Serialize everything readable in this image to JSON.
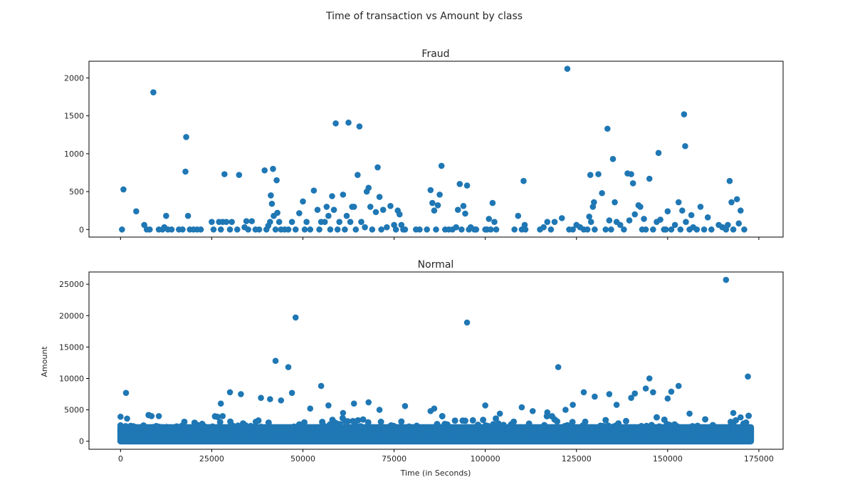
{
  "figure": {
    "suptitle": "Time of transaction vs Amount by class",
    "marker_color": "#1f77b4"
  },
  "chart_data": [
    {
      "type": "scatter",
      "title": "Fraud",
      "xlabel": "",
      "ylabel": "",
      "xlim": [
        -8650,
        181650
      ],
      "ylim": [
        -100,
        2220
      ],
      "xticks": [
        0,
        25000,
        50000,
        75000,
        100000,
        125000,
        150000,
        175000
      ],
      "xtick_labels_visible": false,
      "yticks": [
        0,
        500,
        1000,
        1500,
        2000
      ],
      "ytick_labels": [
        "0",
        "500",
        "1000",
        "1500",
        "2000"
      ],
      "grid": false,
      "points": [
        [
          400,
          0
        ],
        [
          800,
          529
        ],
        [
          4300,
          240
        ],
        [
          6500,
          60
        ],
        [
          7200,
          0
        ],
        [
          8000,
          0
        ],
        [
          9000,
          1810
        ],
        [
          10500,
          0
        ],
        [
          11500,
          0
        ],
        [
          12000,
          30
        ],
        [
          12500,
          180
        ],
        [
          13000,
          0
        ],
        [
          14000,
          0
        ],
        [
          16000,
          0
        ],
        [
          17000,
          0
        ],
        [
          17800,
          764
        ],
        [
          18000,
          1220
        ],
        [
          18500,
          180
        ],
        [
          19000,
          0
        ],
        [
          20000,
          0
        ],
        [
          21000,
          0
        ],
        [
          22000,
          0
        ],
        [
          25000,
          100
        ],
        [
          25500,
          0
        ],
        [
          27000,
          100
        ],
        [
          27500,
          0
        ],
        [
          28000,
          100
        ],
        [
          28500,
          730
        ],
        [
          29000,
          100
        ],
        [
          30000,
          0
        ],
        [
          30500,
          100
        ],
        [
          32000,
          0
        ],
        [
          32500,
          720
        ],
        [
          34000,
          30
        ],
        [
          34500,
          110
        ],
        [
          35000,
          0
        ],
        [
          36000,
          110
        ],
        [
          37000,
          0
        ],
        [
          38000,
          0
        ],
        [
          39500,
          780
        ],
        [
          40000,
          0
        ],
        [
          40500,
          50
        ],
        [
          41000,
          100
        ],
        [
          41200,
          450
        ],
        [
          41500,
          340
        ],
        [
          41800,
          800
        ],
        [
          42000,
          180
        ],
        [
          42500,
          0
        ],
        [
          42800,
          650
        ],
        [
          43000,
          220
        ],
        [
          43500,
          100
        ],
        [
          44000,
          0
        ],
        [
          45000,
          0
        ],
        [
          46000,
          0
        ],
        [
          47000,
          100
        ],
        [
          48000,
          0
        ],
        [
          49000,
          215
        ],
        [
          50000,
          370
        ],
        [
          50500,
          0
        ],
        [
          51000,
          100
        ],
        [
          52000,
          0
        ],
        [
          53000,
          514
        ],
        [
          54000,
          260
        ],
        [
          54500,
          0
        ],
        [
          55000,
          100
        ],
        [
          56000,
          100
        ],
        [
          56500,
          300
        ],
        [
          57000,
          180
        ],
        [
          57500,
          0
        ],
        [
          58000,
          440
        ],
        [
          58500,
          260
        ],
        [
          59000,
          1400
        ],
        [
          59500,
          0
        ],
        [
          60000,
          100
        ],
        [
          61000,
          460
        ],
        [
          61500,
          0
        ],
        [
          62000,
          180
        ],
        [
          62500,
          1410
        ],
        [
          63000,
          100
        ],
        [
          63500,
          300
        ],
        [
          64000,
          300
        ],
        [
          64500,
          0
        ],
        [
          65000,
          720
        ],
        [
          65500,
          1360
        ],
        [
          66000,
          100
        ],
        [
          67000,
          30
        ],
        [
          67500,
          500
        ],
        [
          68000,
          550
        ],
        [
          68500,
          300
        ],
        [
          69000,
          0
        ],
        [
          70000,
          230
        ],
        [
          70500,
          820
        ],
        [
          71000,
          430
        ],
        [
          71500,
          0
        ],
        [
          72000,
          260
        ],
        [
          73000,
          30
        ],
        [
          74000,
          310
        ],
        [
          75000,
          60
        ],
        [
          75500,
          0
        ],
        [
          76000,
          250
        ],
        [
          76500,
          200
        ],
        [
          77000,
          60
        ],
        [
          77500,
          0
        ],
        [
          78000,
          0
        ],
        [
          81000,
          0
        ],
        [
          82000,
          0
        ],
        [
          84000,
          0
        ],
        [
          85000,
          520
        ],
        [
          85500,
          350
        ],
        [
          86000,
          250
        ],
        [
          86500,
          0
        ],
        [
          87000,
          320
        ],
        [
          87500,
          460
        ],
        [
          88000,
          840
        ],
        [
          89000,
          0
        ],
        [
          90000,
          0
        ],
        [
          91000,
          0
        ],
        [
          92000,
          30
        ],
        [
          92500,
          260
        ],
        [
          93000,
          600
        ],
        [
          93500,
          0
        ],
        [
          94000,
          310
        ],
        [
          94500,
          210
        ],
        [
          95000,
          580
        ],
        [
          95500,
          0
        ],
        [
          96000,
          30
        ],
        [
          97000,
          0
        ],
        [
          97500,
          0
        ],
        [
          100000,
          0
        ],
        [
          100500,
          0
        ],
        [
          101000,
          140
        ],
        [
          101500,
          0
        ],
        [
          102000,
          350
        ],
        [
          102500,
          100
        ],
        [
          103000,
          0
        ],
        [
          108000,
          0
        ],
        [
          109000,
          180
        ],
        [
          110000,
          0
        ],
        [
          110500,
          640
        ],
        [
          110800,
          60
        ],
        [
          111000,
          0
        ],
        [
          115000,
          0
        ],
        [
          116000,
          30
        ],
        [
          117000,
          100
        ],
        [
          118000,
          0
        ],
        [
          119000,
          100
        ],
        [
          121000,
          150
        ],
        [
          122500,
          2120
        ],
        [
          123000,
          0
        ],
        [
          124000,
          0
        ],
        [
          125000,
          60
        ],
        [
          126000,
          30
        ],
        [
          127000,
          0
        ],
        [
          128000,
          0
        ],
        [
          128500,
          170
        ],
        [
          128800,
          720
        ],
        [
          129000,
          100
        ],
        [
          129500,
          300
        ],
        [
          129800,
          360
        ],
        [
          130000,
          0
        ],
        [
          131000,
          730
        ],
        [
          132000,
          480
        ],
        [
          133000,
          0
        ],
        [
          133500,
          1330
        ],
        [
          134000,
          120
        ],
        [
          134500,
          0
        ],
        [
          135000,
          930
        ],
        [
          135500,
          360
        ],
        [
          136000,
          100
        ],
        [
          137000,
          60
        ],
        [
          138000,
          0
        ],
        [
          139000,
          740
        ],
        [
          139500,
          120
        ],
        [
          140000,
          730
        ],
        [
          140500,
          610
        ],
        [
          141000,
          200
        ],
        [
          142000,
          320
        ],
        [
          142500,
          300
        ],
        [
          143000,
          0
        ],
        [
          143500,
          140
        ],
        [
          144000,
          0
        ],
        [
          145000,
          670
        ],
        [
          146000,
          0
        ],
        [
          147000,
          100
        ],
        [
          147500,
          1010
        ],
        [
          148000,
          130
        ],
        [
          149000,
          0
        ],
        [
          149500,
          0
        ],
        [
          150000,
          240
        ],
        [
          151000,
          0
        ],
        [
          152000,
          60
        ],
        [
          153000,
          360
        ],
        [
          153500,
          0
        ],
        [
          154000,
          250
        ],
        [
          154500,
          1520
        ],
        [
          154800,
          1100
        ],
        [
          155000,
          100
        ],
        [
          156000,
          0
        ],
        [
          156500,
          190
        ],
        [
          157000,
          30
        ],
        [
          158000,
          0
        ],
        [
          159000,
          300
        ],
        [
          160000,
          0
        ],
        [
          161000,
          160
        ],
        [
          162000,
          0
        ],
        [
          164000,
          60
        ],
        [
          165000,
          30
        ],
        [
          166000,
          0
        ],
        [
          166500,
          60
        ],
        [
          167000,
          640
        ],
        [
          167500,
          360
        ],
        [
          168000,
          0
        ],
        [
          169000,
          400
        ],
        [
          169500,
          80
        ],
        [
          170000,
          250
        ],
        [
          171000,
          0
        ]
      ]
    },
    {
      "type": "scatter",
      "title": "Normal",
      "xlabel": "Time (in Seconds)",
      "ylabel": "Amount",
      "xlim": [
        -8650,
        181650
      ],
      "ylim": [
        -1280,
        26950
      ],
      "xticks": [
        0,
        25000,
        50000,
        75000,
        100000,
        125000,
        150000,
        175000
      ],
      "xtick_labels": [
        "0",
        "25000",
        "50000",
        "75000",
        "100000",
        "125000",
        "150000",
        "175000"
      ],
      "yticks": [
        0,
        5000,
        10000,
        15000,
        20000,
        25000
      ],
      "ytick_labels": [
        "0",
        "5000",
        "10000",
        "15000",
        "20000",
        "25000"
      ],
      "grid": false,
      "dense_band": {
        "x_range": [
          0,
          172800
        ],
        "y_range": [
          0,
          2200
        ]
      },
      "points": [
        [
          0,
          3900
        ],
        [
          1500,
          7700
        ],
        [
          1800,
          3600
        ],
        [
          8500,
          4000
        ],
        [
          10500,
          4000
        ],
        [
          27500,
          6000
        ],
        [
          28000,
          4000
        ],
        [
          30000,
          7800
        ],
        [
          33000,
          7500
        ],
        [
          38500,
          6900
        ],
        [
          41000,
          6700
        ],
        [
          42500,
          12800
        ],
        [
          44000,
          6500
        ],
        [
          46000,
          11800
        ],
        [
          47000,
          7700
        ],
        [
          48000,
          19700
        ],
        [
          52000,
          5200
        ],
        [
          55000,
          8800
        ],
        [
          57000,
          5700
        ],
        [
          61000,
          4500
        ],
        [
          64000,
          6000
        ],
        [
          68000,
          6200
        ],
        [
          71000,
          5000
        ],
        [
          78000,
          5600
        ],
        [
          85000,
          4800
        ],
        [
          86000,
          5200
        ],
        [
          95000,
          18900
        ],
        [
          100000,
          5700
        ],
        [
          104000,
          4400
        ],
        [
          110000,
          5400
        ],
        [
          113000,
          4800
        ],
        [
          117000,
          4600
        ],
        [
          120000,
          11800
        ],
        [
          122000,
          5000
        ],
        [
          124000,
          5800
        ],
        [
          127000,
          7800
        ],
        [
          130000,
          7100
        ],
        [
          134000,
          7500
        ],
        [
          136000,
          5800
        ],
        [
          140000,
          6900
        ],
        [
          141000,
          7600
        ],
        [
          144000,
          8400
        ],
        [
          145000,
          10000
        ],
        [
          146000,
          7800
        ],
        [
          150000,
          6800
        ],
        [
          151000,
          7900
        ],
        [
          153000,
          8800
        ],
        [
          156000,
          4400
        ],
        [
          166000,
          25700
        ],
        [
          168000,
          4500
        ],
        [
          170000,
          3800
        ],
        [
          172000,
          10300
        ]
      ]
    }
  ]
}
